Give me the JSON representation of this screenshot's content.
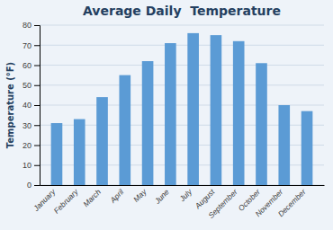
{
  "chart_data": {
    "type": "bar",
    "title": "Average Daily  Temperature",
    "ylabel": "Temperature (°F)",
    "categories": [
      "January",
      "February",
      "March",
      "April",
      "May",
      "June",
      "July",
      "August",
      "September",
      "October",
      "November",
      "December"
    ],
    "values": [
      31,
      33,
      44,
      55,
      62,
      71,
      76,
      75,
      72,
      61,
      40,
      37
    ],
    "color": "#5B9BD5",
    "ylim": [
      0,
      80
    ],
    "yticks": [
      0,
      10,
      20,
      30,
      40,
      50,
      60,
      70,
      80
    ],
    "grid": true
  }
}
